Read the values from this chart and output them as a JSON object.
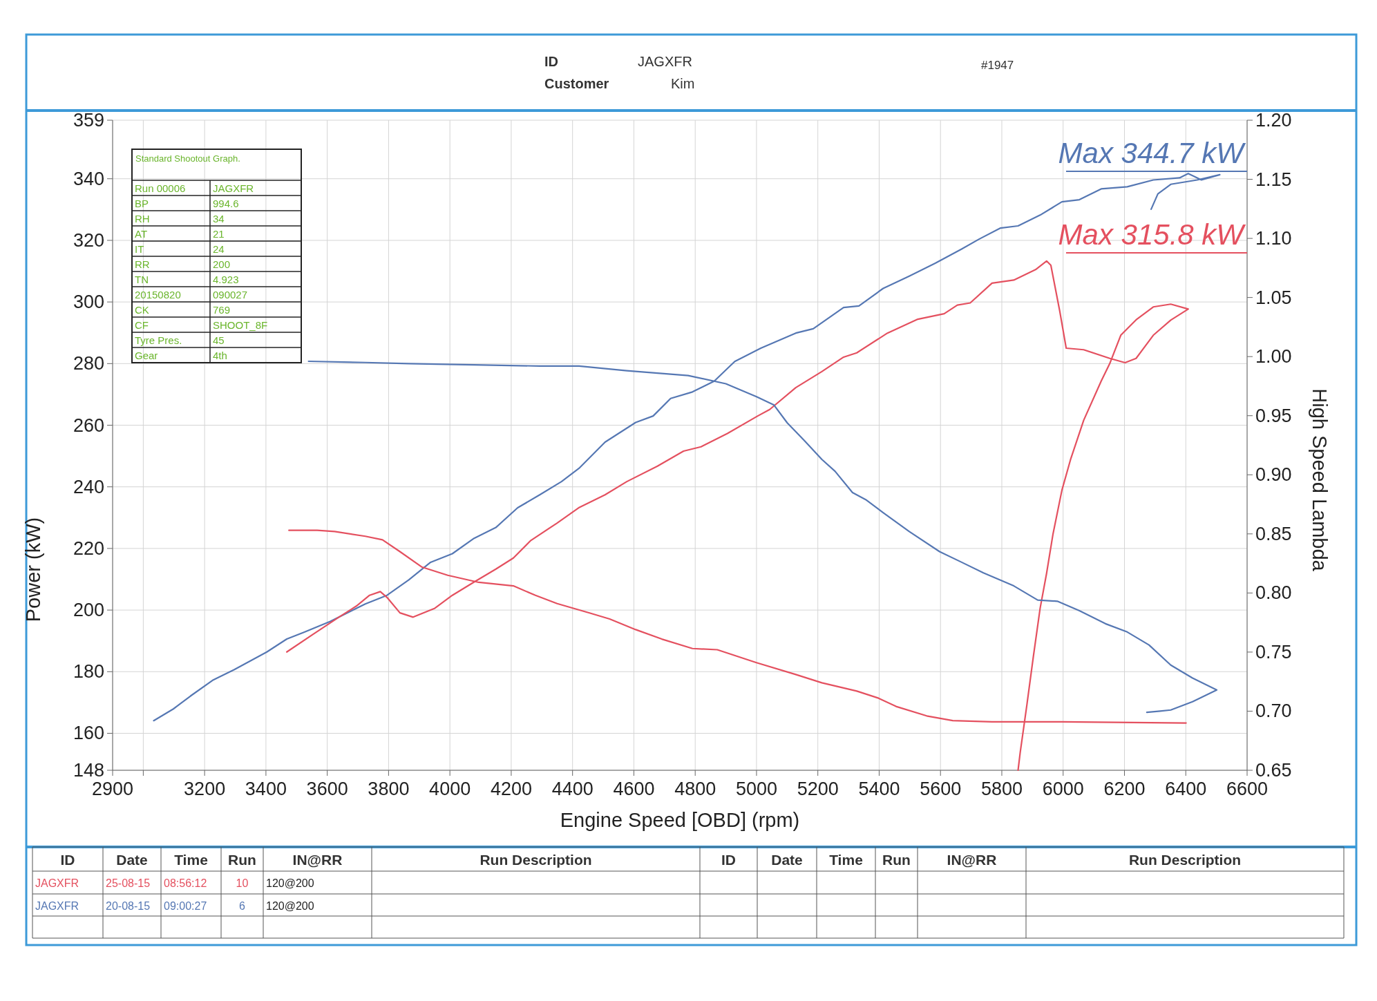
{
  "chart_data": {
    "type": "line",
    "xlabel": "Engine Speed [OBD] (rpm)",
    "ylabel": "Power (kW)",
    "y2label": "High Speed Lambda",
    "xlim": [
      2900,
      6600
    ],
    "xticks": [
      2900,
      {
        "value": 3000,
        "label": null
      },
      3200,
      3400,
      3600,
      3800,
      4000,
      4200,
      4400,
      4600,
      4800,
      5000,
      5200,
      5400,
      5600,
      5800,
      6000,
      6200,
      6400,
      6600
    ],
    "ylim": [
      148,
      359
    ],
    "yticks": [
      148,
      160,
      180,
      200,
      220,
      240,
      260,
      280,
      300,
      320,
      340,
      359
    ],
    "y2lim": [
      0.65,
      1.2
    ],
    "y2ticks": [
      0.65,
      {
        "value": 0.7,
        "label": "0.70"
      },
      0.75,
      {
        "value": 0.8,
        "label": "0.80"
      },
      0.85,
      {
        "value": 0.9,
        "label": "0.90"
      },
      0.95,
      {
        "value": 1.0,
        "label": "1.00"
      },
      1.05,
      {
        "value": 1.1,
        "label": "1.10"
      },
      1.15,
      {
        "value": 1.2,
        "label": "1.20"
      }
    ],
    "grid": true,
    "line_style": "solid",
    "series": [
      {
        "axis": "y",
        "color": "#5577b3",
        "x": [
          3034,
          3098,
          3154,
          3226,
          3297,
          3403,
          3468,
          3524,
          3610,
          3724,
          3795,
          3866,
          3937,
          4008,
          4079,
          4150,
          4221,
          4293,
          4364,
          4421,
          4506,
          4606,
          4663,
          4720,
          4791,
          4862,
          4929,
          5014,
          5128,
          5185,
          5284,
          5334,
          5413,
          5498,
          5583,
          5669,
          5726,
          5796,
          5853,
          5925,
          5996,
          6053,
          6124,
          6209,
          6294,
          6380,
          6408,
          6451,
          6511,
          6437,
          6351,
          6309,
          6287
        ],
        "values": [
          164.1,
          167.9,
          172.1,
          177.2,
          180.7,
          186.4,
          190.6,
          192.8,
          196.3,
          202,
          204.8,
          209.8,
          215.5,
          218.3,
          223.3,
          226.8,
          233.2,
          237.4,
          241.7,
          246,
          254.5,
          260.9,
          263,
          268.7,
          270.8,
          274.3,
          280.7,
          285,
          289.9,
          291.3,
          298.2,
          298.7,
          304.4,
          308.4,
          312.6,
          317.2,
          320.4,
          324,
          324.7,
          328.2,
          332.5,
          333.2,
          336.7,
          337.4,
          339.6,
          340.3,
          341.7,
          339.6,
          341.3,
          339.6,
          338.2,
          335.1,
          330.1
        ]
      },
      {
        "axis": "y",
        "color": "#e4505f",
        "x": [
          3468,
          3553,
          3638,
          3695,
          3738,
          3773,
          3795,
          3837,
          3880,
          3951,
          4008,
          4079,
          4150,
          4207,
          4264,
          4349,
          4420,
          4506,
          4577,
          4677,
          4762,
          4819,
          4905,
          5004,
          5043,
          5128,
          5213,
          5284,
          5327,
          5427,
          5526,
          5612,
          5655,
          5697,
          5768,
          5839,
          5910,
          5946,
          5960,
          5989,
          6010,
          6067,
          6152,
          6202,
          6238,
          6294,
          6351,
          6408,
          6351,
          6294,
          6238,
          6188,
          6152,
          6124,
          6067,
          6024,
          5996,
          5967,
          5946,
          5925,
          5903,
          5882,
          5860,
          5853
        ],
        "values": [
          186.4,
          192.1,
          197.7,
          201.3,
          204.8,
          206,
          204.1,
          199.1,
          197.7,
          200.6,
          204.8,
          209.1,
          213.3,
          216.9,
          222.6,
          228.2,
          233.2,
          237.4,
          241.7,
          246.7,
          251.6,
          253,
          257.3,
          263,
          265.1,
          272.2,
          277.4,
          282.1,
          283.5,
          289.9,
          294.4,
          296.2,
          299,
          299.7,
          306.1,
          307.1,
          310.5,
          313.3,
          311.9,
          297,
          285,
          284.5,
          281.7,
          280.3,
          281.7,
          289.2,
          294.1,
          297.7,
          299.3,
          298.4,
          294.2,
          289.2,
          280,
          274.3,
          261.6,
          248.8,
          238.9,
          224.7,
          211.9,
          200.6,
          185,
          169.4,
          153.8,
          148
        ]
      },
      {
        "axis": "y2",
        "color": "#5577b3",
        "x": [
          3539,
          3724,
          3866,
          4079,
          4293,
          4421,
          4577,
          4777,
          4900,
          5000,
          5057,
          5100,
          5156,
          5213,
          5256,
          5313,
          5356,
          5413,
          5498,
          5597,
          5669,
          5740,
          5839,
          5917,
          5981,
          6053,
          6138,
          6209,
          6280,
          6351,
          6422,
          6501,
          6422,
          6351,
          6316,
          6273
        ],
        "values": [
          0.996,
          0.995,
          0.994,
          0.993,
          0.992,
          0.992,
          0.988,
          0.984,
          0.977,
          0.966,
          0.959,
          0.944,
          0.929,
          0.913,
          0.903,
          0.885,
          0.879,
          0.868,
          0.852,
          0.835,
          0.826,
          0.817,
          0.806,
          0.794,
          0.793,
          0.785,
          0.774,
          0.767,
          0.756,
          0.739,
          0.728,
          0.718,
          0.708,
          0.701,
          0.7,
          0.699
        ]
      },
      {
        "axis": "y2",
        "color": "#e4505f",
        "x": [
          3475,
          3567,
          3624,
          3724,
          3780,
          3837,
          3908,
          3993,
          4094,
          4207,
          4279,
          4350,
          4457,
          4521,
          4606,
          4691,
          4791,
          4872,
          5000,
          5128,
          5213,
          5327,
          5398,
          5455,
          5555,
          5640,
          5768,
          5996,
          6401
        ],
        "values": [
          0.853,
          0.853,
          0.852,
          0.848,
          0.845,
          0.835,
          0.822,
          0.815,
          0.809,
          0.806,
          0.798,
          0.791,
          0.783,
          0.778,
          0.769,
          0.761,
          0.753,
          0.752,
          0.741,
          0.731,
          0.724,
          0.717,
          0.711,
          0.704,
          0.696,
          0.692,
          0.691,
          0.691,
          0.69
        ]
      }
    ],
    "annotations": [
      "ID",
      "JAGXFR",
      "Customer",
      "Kim",
      "#1947",
      "Max 344.7 kW",
      "Max 315.8 kW",
      "Standard Shootout Graph.",
      "Run 00006",
      "JAGXFR",
      "BP",
      "994.6",
      "RH",
      "34",
      "AT",
      "21",
      "IT",
      "24",
      "RR",
      "200",
      "TN",
      "4.923",
      "20150820",
      "090027",
      "CK",
      "769",
      "CF",
      "SHOOT_8F",
      "Tyre Pres.",
      "45",
      "Gear",
      "4th",
      "ID",
      "Date",
      "Time",
      "Run",
      "IN@RR",
      "Run Description",
      "ID",
      "Date",
      "Time",
      "Run",
      "IN@RR",
      "Run Description",
      "JAGXFR",
      "25-08-15",
      "08:56:12",
      "10",
      "120@200",
      "JAGXFR",
      "20-08-15",
      "09:00:27",
      "6",
      "120@200"
    ]
  }
}
